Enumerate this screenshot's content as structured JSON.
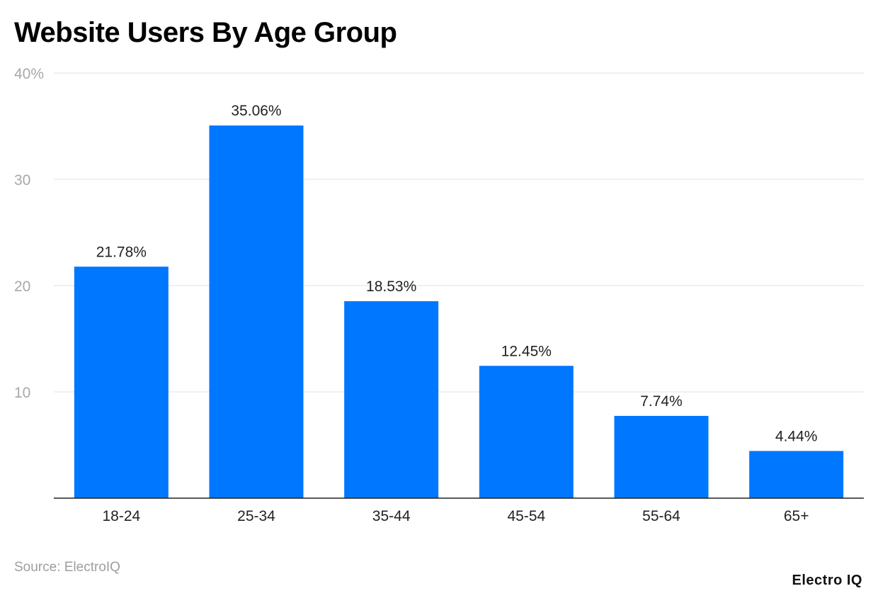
{
  "chart_data": {
    "type": "bar",
    "title": "Website Users By Age Group",
    "categories": [
      "18-24",
      "25-34",
      "35-44",
      "45-54",
      "55-64",
      "65+"
    ],
    "values": [
      21.78,
      35.06,
      18.53,
      12.45,
      7.74,
      4.44
    ],
    "data_labels": [
      "21.78%",
      "35.06%",
      "18.53%",
      "12.45%",
      "7.74%",
      "4.44%"
    ],
    "yticks": [
      10,
      20,
      30,
      40
    ],
    "ytick_labels": [
      "10",
      "20",
      "30",
      "40%"
    ],
    "ylim": [
      0,
      40
    ],
    "xlabel": "",
    "ylabel": "",
    "grid": true,
    "bar_color": "#0077ff"
  },
  "footer": {
    "source": "Source: ElectroIQ",
    "brand": "Electro IQ"
  }
}
